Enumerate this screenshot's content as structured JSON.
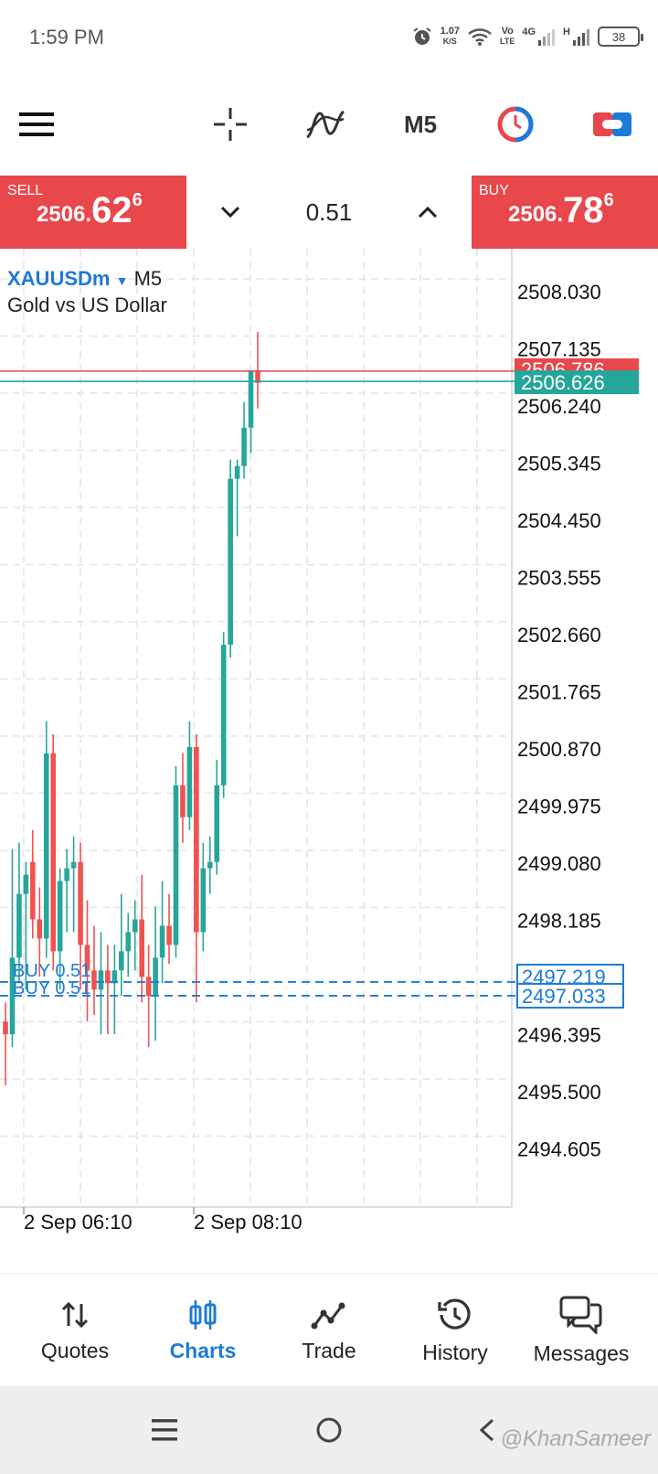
{
  "status_bar": {
    "time": "1:59 PM",
    "speed_value": "1.07",
    "speed_unit": "K/S",
    "volte_top": "Vo",
    "volte_bottom": "LTE",
    "network": "4G",
    "network2": "H",
    "battery": "38"
  },
  "toolbar": {
    "timeframe": "M5",
    "icons": [
      "menu-icon",
      "crosshair-icon",
      "indicators-icon",
      "timeframe",
      "clock-icon",
      "one-click-trading-icon"
    ]
  },
  "trade_panel": {
    "sell_label": "SELL",
    "sell_price_small": "2506.",
    "sell_price_big": "62",
    "sell_price_sup": "6",
    "buy_label": "BUY",
    "buy_price_small": "2506.",
    "buy_price_big": "78",
    "buy_price_sup": "6",
    "lot": "0.51"
  },
  "chart": {
    "symbol": "XAUUSDm",
    "timeframe": "M5",
    "description": "Gold vs US Dollar",
    "ask_label": "2506.786",
    "bid_label": "2506.626",
    "position_labels": [
      "BUY 0.51",
      "BUY 0.51"
    ],
    "position_prices": [
      "2497.219",
      "2497.033"
    ],
    "time_labels": [
      "2 Sep 06:10",
      "2 Sep 08:10"
    ]
  },
  "chart_data": {
    "type": "candlestick",
    "title": "",
    "ylim": [
      2494.0,
      2508.6
    ],
    "y_ticks": [
      "2508.030",
      "2507.135",
      "2506.240",
      "2505.345",
      "2504.450",
      "2503.555",
      "2502.660",
      "2501.765",
      "2500.870",
      "2499.975",
      "2499.080",
      "2498.185",
      "2496.395",
      "2495.500",
      "2494.605"
    ],
    "bid": 2506.626,
    "ask": 2506.786,
    "positions": [
      2497.219,
      2497.033
    ],
    "candles": [
      {
        "o": 2496.6,
        "h": 2496.9,
        "l": 2495.6,
        "c": 2496.4
      },
      {
        "o": 2496.4,
        "h": 2499.3,
        "l": 2496.2,
        "c": 2497.6
      },
      {
        "o": 2497.6,
        "h": 2499.4,
        "l": 2497.2,
        "c": 2498.6
      },
      {
        "o": 2498.6,
        "h": 2499.1,
        "l": 2497.1,
        "c": 2498.9
      },
      {
        "o": 2499.1,
        "h": 2499.6,
        "l": 2497.9,
        "c": 2498.2
      },
      {
        "o": 2498.2,
        "h": 2498.7,
        "l": 2497.3,
        "c": 2497.9
      },
      {
        "o": 2497.9,
        "h": 2501.3,
        "l": 2497.6,
        "c": 2500.8
      },
      {
        "o": 2500.8,
        "h": 2501.1,
        "l": 2497.4,
        "c": 2497.7
      },
      {
        "o": 2497.7,
        "h": 2499.0,
        "l": 2497.1,
        "c": 2498.8
      },
      {
        "o": 2498.8,
        "h": 2499.3,
        "l": 2498.0,
        "c": 2499.0
      },
      {
        "o": 2499.0,
        "h": 2499.5,
        "l": 2498.0,
        "c": 2499.1
      },
      {
        "o": 2499.1,
        "h": 2499.4,
        "l": 2497.1,
        "c": 2497.8
      },
      {
        "o": 2497.8,
        "h": 2498.5,
        "l": 2496.6,
        "c": 2497.4
      },
      {
        "o": 2497.4,
        "h": 2498.1,
        "l": 2496.7,
        "c": 2497.1
      },
      {
        "o": 2497.1,
        "h": 2498.0,
        "l": 2496.4,
        "c": 2497.4
      },
      {
        "o": 2497.4,
        "h": 2497.8,
        "l": 2496.4,
        "c": 2497.2
      },
      {
        "o": 2497.2,
        "h": 2497.8,
        "l": 2496.4,
        "c": 2497.4
      },
      {
        "o": 2497.4,
        "h": 2498.6,
        "l": 2497.0,
        "c": 2497.7
      },
      {
        "o": 2497.7,
        "h": 2498.3,
        "l": 2497.3,
        "c": 2498.0
      },
      {
        "o": 2498.0,
        "h": 2498.5,
        "l": 2497.4,
        "c": 2498.2
      },
      {
        "o": 2498.2,
        "h": 2498.9,
        "l": 2496.9,
        "c": 2497.3
      },
      {
        "o": 2497.3,
        "h": 2497.8,
        "l": 2496.2,
        "c": 2497.0
      },
      {
        "o": 2497.0,
        "h": 2498.4,
        "l": 2496.3,
        "c": 2497.6
      },
      {
        "o": 2497.6,
        "h": 2498.8,
        "l": 2497.2,
        "c": 2498.1
      },
      {
        "o": 2498.1,
        "h": 2498.6,
        "l": 2497.5,
        "c": 2497.8
      },
      {
        "o": 2497.8,
        "h": 2500.6,
        "l": 2497.6,
        "c": 2500.3
      },
      {
        "o": 2500.3,
        "h": 2500.8,
        "l": 2499.4,
        "c": 2499.8
      },
      {
        "o": 2499.8,
        "h": 2501.3,
        "l": 2499.6,
        "c": 2500.9
      },
      {
        "o": 2500.9,
        "h": 2501.1,
        "l": 2496.9,
        "c": 2498.0
      },
      {
        "o": 2498.0,
        "h": 2499.4,
        "l": 2497.7,
        "c": 2499.0
      },
      {
        "o": 2499.0,
        "h": 2499.5,
        "l": 2498.6,
        "c": 2499.1
      },
      {
        "o": 2499.1,
        "h": 2500.7,
        "l": 2498.9,
        "c": 2500.3
      },
      {
        "o": 2500.3,
        "h": 2502.7,
        "l": 2500.1,
        "c": 2502.5
      },
      {
        "o": 2502.5,
        "h": 2505.4,
        "l": 2502.3,
        "c": 2505.1
      },
      {
        "o": 2505.1,
        "h": 2505.4,
        "l": 2504.2,
        "c": 2505.3
      },
      {
        "o": 2505.3,
        "h": 2506.3,
        "l": 2505.1,
        "c": 2505.9
      },
      {
        "o": 2505.9,
        "h": 2506.8,
        "l": 2505.5,
        "c": 2506.8
      },
      {
        "o": 2506.8,
        "h": 2507.4,
        "l": 2506.2,
        "c": 2506.6
      }
    ]
  },
  "bottom_nav": {
    "quotes": "Quotes",
    "charts": "Charts",
    "trade": "Trade",
    "history": "History",
    "messages": "Messages"
  },
  "watermark": "@KhanSameer",
  "colors": {
    "bull": "#26a69a",
    "bear": "#ef5350",
    "accent": "#1e7ad6",
    "sell_buy_bg": "#e8474c"
  }
}
